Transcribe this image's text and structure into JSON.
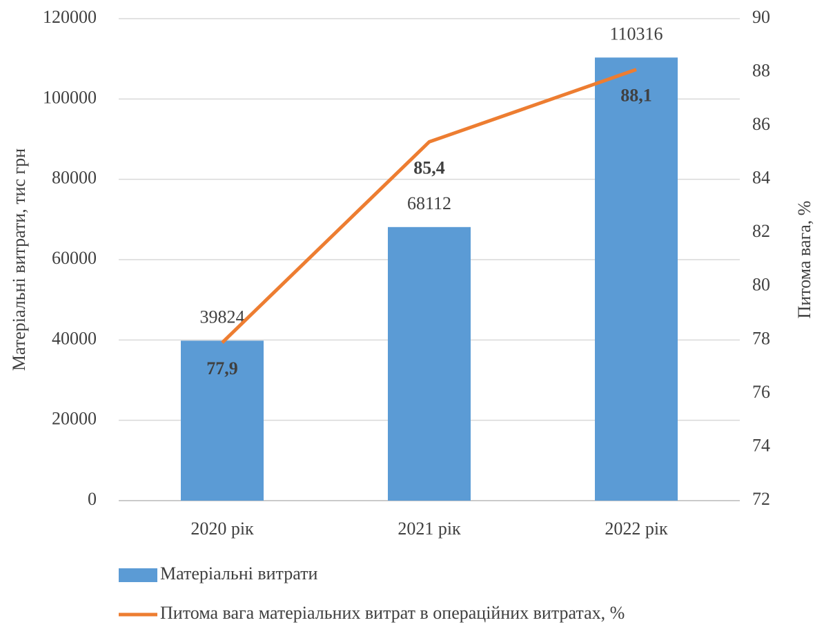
{
  "chart_data": {
    "type": "combo",
    "categories": [
      "2020 рік",
      "2021 рік",
      "2022 рік"
    ],
    "series": [
      {
        "name": "Матеріальні витрати",
        "type": "bar",
        "color": "#5b9bd5",
        "values": [
          39824,
          68112,
          110316
        ]
      },
      {
        "name": "Питома вага матеріальних витрат в операційних витратах, %",
        "type": "line",
        "axis": "y2",
        "color": "#ed7d31",
        "values": [
          77.9,
          85.4,
          88.1
        ],
        "value_labels": [
          "77,9",
          "85,4",
          "88,1"
        ]
      }
    ],
    "ylabel": "Матеріальні витрати, тис грн",
    "y2label": "Питома вага, %",
    "ylim": [
      0,
      120000
    ],
    "yticks": [
      0,
      20000,
      40000,
      60000,
      80000,
      100000,
      120000
    ],
    "y2lim": [
      72,
      90
    ],
    "y2ticks": [
      72,
      74,
      76,
      78,
      80,
      82,
      84,
      86,
      88,
      90
    ],
    "grid": true,
    "legend": "bottom"
  }
}
